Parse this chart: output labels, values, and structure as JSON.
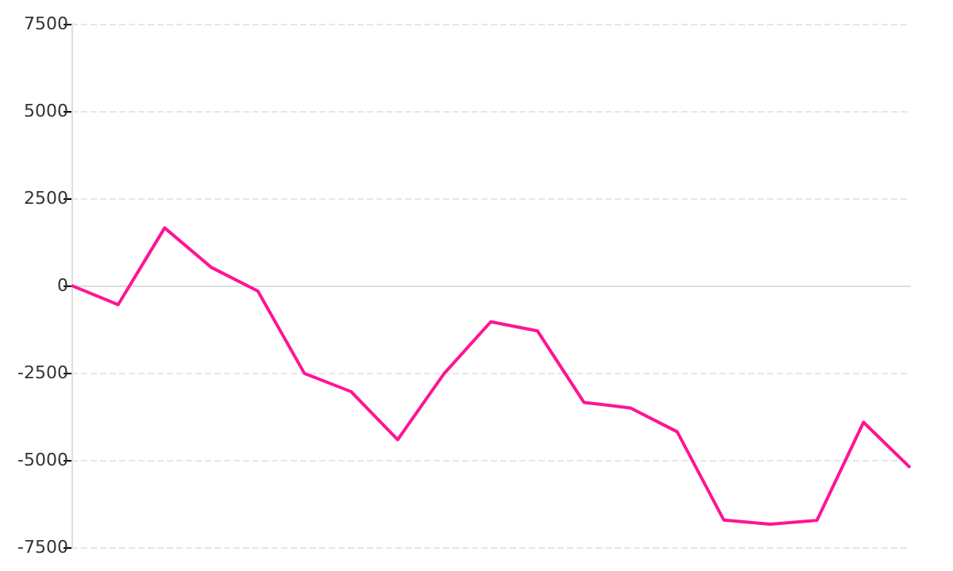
{
  "chart_data": {
    "type": "line",
    "categories": [
      null,
      null,
      null,
      null,
      null,
      null,
      null,
      null,
      null,
      null,
      null,
      null,
      null,
      null,
      null,
      null,
      null,
      null,
      null
    ],
    "series": [
      {
        "color": "#ff1493",
        "values": [
          0,
          -550,
          1650,
          520,
          -160,
          -2520,
          -3040,
          -4420,
          -2520,
          -1040,
          -1300,
          -3350,
          -3510,
          -4190,
          -6720,
          -6840,
          -6730,
          -3920,
          -5220
        ]
      }
    ],
    "ylim": [
      -7500,
      7500
    ],
    "yticks": [
      -7500,
      -5000,
      -2500,
      0,
      2500,
      5000,
      7500
    ],
    "tick_labels": "y",
    "grid": "y",
    "marker": "none",
    "line_style": "solid"
  }
}
